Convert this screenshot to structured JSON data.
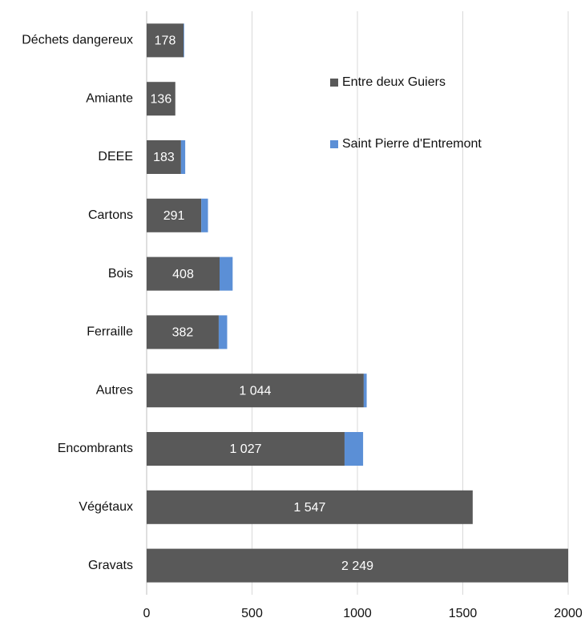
{
  "chart_data": {
    "type": "stacked-bar-horizontal",
    "categories": [
      "Déchets dangereux",
      "Amiante",
      "DEEE",
      "Cartons",
      "Bois",
      "Ferraille",
      "Autres",
      "Encombrants",
      "Végétaux",
      "Gravats"
    ],
    "series": [
      {
        "name": "Entre deux Guiers",
        "color": "#595959",
        "values": [
          175,
          136,
          163,
          259,
          346,
          342,
          1030,
          939,
          1547,
          2249
        ]
      },
      {
        "name": "Saint Pierre d'Entremont",
        "color": "#5b8fd6",
        "values": [
          3,
          0,
          20,
          32,
          62,
          40,
          14,
          88,
          0,
          0
        ]
      }
    ],
    "total_labels": [
      "178",
      "136",
      "183",
      "291",
      "408",
      "382",
      "1 044",
      "1 027",
      "1 547",
      "2 249"
    ],
    "xlim": [
      0,
      2000
    ],
    "xticks": [
      0,
      500,
      1000,
      1500,
      2000
    ],
    "grid": true,
    "legend": "top-right"
  }
}
